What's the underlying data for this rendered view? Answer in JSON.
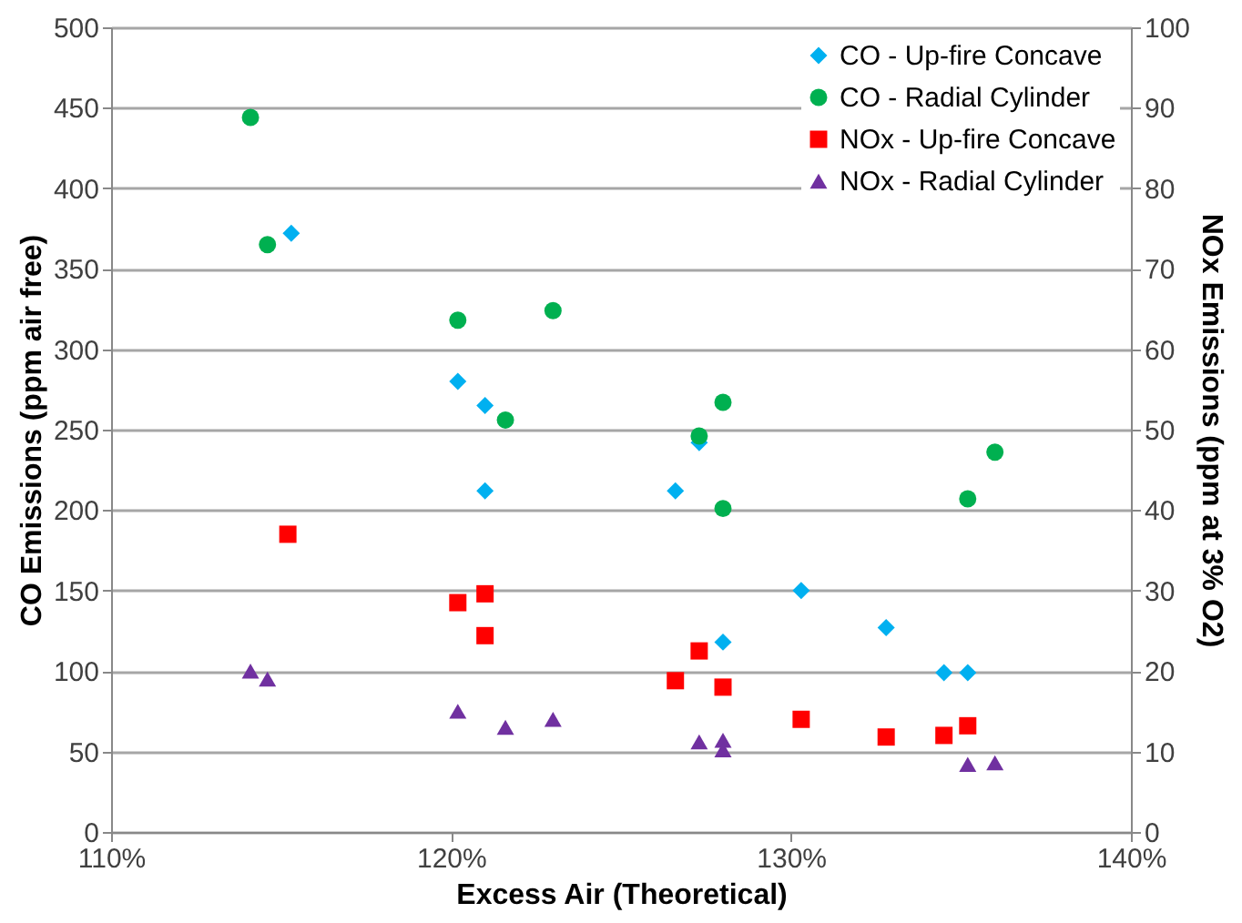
{
  "chart_data": {
    "type": "scatter",
    "xlabel": "Excess Air (Theoretical)",
    "ylabel": "CO Emissions (ppm air free)",
    "y2label": "NOx Emissions (ppm at 3% O2)",
    "xlim": [
      110,
      140
    ],
    "xticks": [
      {
        "value": 110,
        "label": "110%"
      },
      {
        "value": 120,
        "label": "120%"
      },
      {
        "value": 130,
        "label": "130%"
      },
      {
        "value": 140,
        "label": "140%"
      }
    ],
    "ylim": [
      0,
      500
    ],
    "yticks": [
      0,
      50,
      100,
      150,
      200,
      250,
      300,
      350,
      400,
      450,
      500
    ],
    "y2lim": [
      0,
      100
    ],
    "y2ticks": [
      0,
      10,
      20,
      30,
      40,
      50,
      60,
      70,
      80,
      90,
      100
    ],
    "grid": "y",
    "legend": "top right",
    "series": [
      {
        "name": "CO - Up-fire Concave",
        "color": "#00b0f0",
        "marker": "diamond",
        "x": [
          115.3,
          120.2,
          121.0,
          121.0,
          126.6,
          127.3,
          128.0,
          130.3,
          132.8,
          134.5,
          135.2
        ],
        "values": [
          372,
          280,
          265,
          212,
          212,
          242,
          118,
          150,
          127,
          99,
          99
        ]
      },
      {
        "name": "CO - Radial Cylinder",
        "color": "#00b050",
        "marker": "circle",
        "x": [
          114.1,
          114.6,
          120.2,
          121.6,
          123.0,
          127.3,
          128.0,
          128.0,
          135.2,
          136.0
        ],
        "values": [
          444,
          365,
          318,
          256,
          324,
          246,
          267,
          201,
          207,
          236
        ]
      },
      {
        "name": "NOx - Up-fire Concave",
        "color": "#ff0000",
        "marker": "square",
        "axis": "y2",
        "x": [
          115.2,
          120.2,
          121.0,
          121.0,
          126.6,
          127.3,
          128.0,
          130.3,
          132.8,
          134.5,
          135.2
        ],
        "values": [
          37,
          28.5,
          29.6,
          24.4,
          18.8,
          22.5,
          18,
          14,
          11.8,
          12,
          13.2
        ]
      },
      {
        "name": "NOx - Radial Cylinder",
        "color": "#7030a0",
        "marker": "triangle",
        "axis": "y2",
        "x": [
          114.1,
          114.6,
          120.2,
          121.6,
          123.0,
          127.3,
          128.0,
          128.0,
          135.2,
          136.0
        ],
        "values": [
          20,
          19,
          15,
          13,
          14,
          11.2,
          11.4,
          10.2,
          8.4,
          8.6
        ]
      }
    ]
  }
}
